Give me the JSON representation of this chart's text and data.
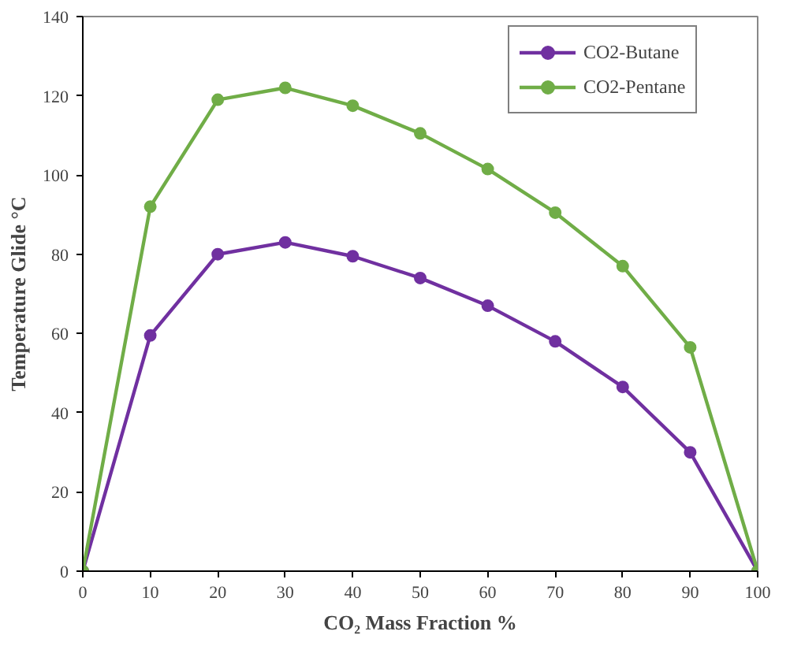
{
  "chart_data": {
    "type": "line",
    "xlabel": "CO₂ Mass Fraction %",
    "ylabel": "Temperature Glide °C",
    "x": [
      0,
      10,
      20,
      30,
      40,
      50,
      60,
      70,
      80,
      90,
      100
    ],
    "series": [
      {
        "name": "CO2-Butane",
        "color": "#7030a0",
        "values": [
          0,
          59.5,
          80,
          83,
          79.5,
          74,
          67,
          58,
          46.5,
          30,
          0
        ]
      },
      {
        "name": "CO2-Pentane",
        "color": "#70ad47",
        "values": [
          0,
          92,
          119,
          122,
          117.5,
          110.5,
          101.5,
          90.5,
          77,
          56.5,
          0
        ]
      }
    ],
    "xlim": [
      0,
      100
    ],
    "xticks": [
      0,
      10,
      20,
      30,
      40,
      50,
      60,
      70,
      80,
      90,
      100
    ],
    "ylim": [
      0,
      140
    ],
    "yticks": [
      0,
      20,
      40,
      60,
      80,
      100,
      120,
      140
    ],
    "grid": false,
    "legend": "top right",
    "marker": "circle",
    "line_style": "solid"
  }
}
